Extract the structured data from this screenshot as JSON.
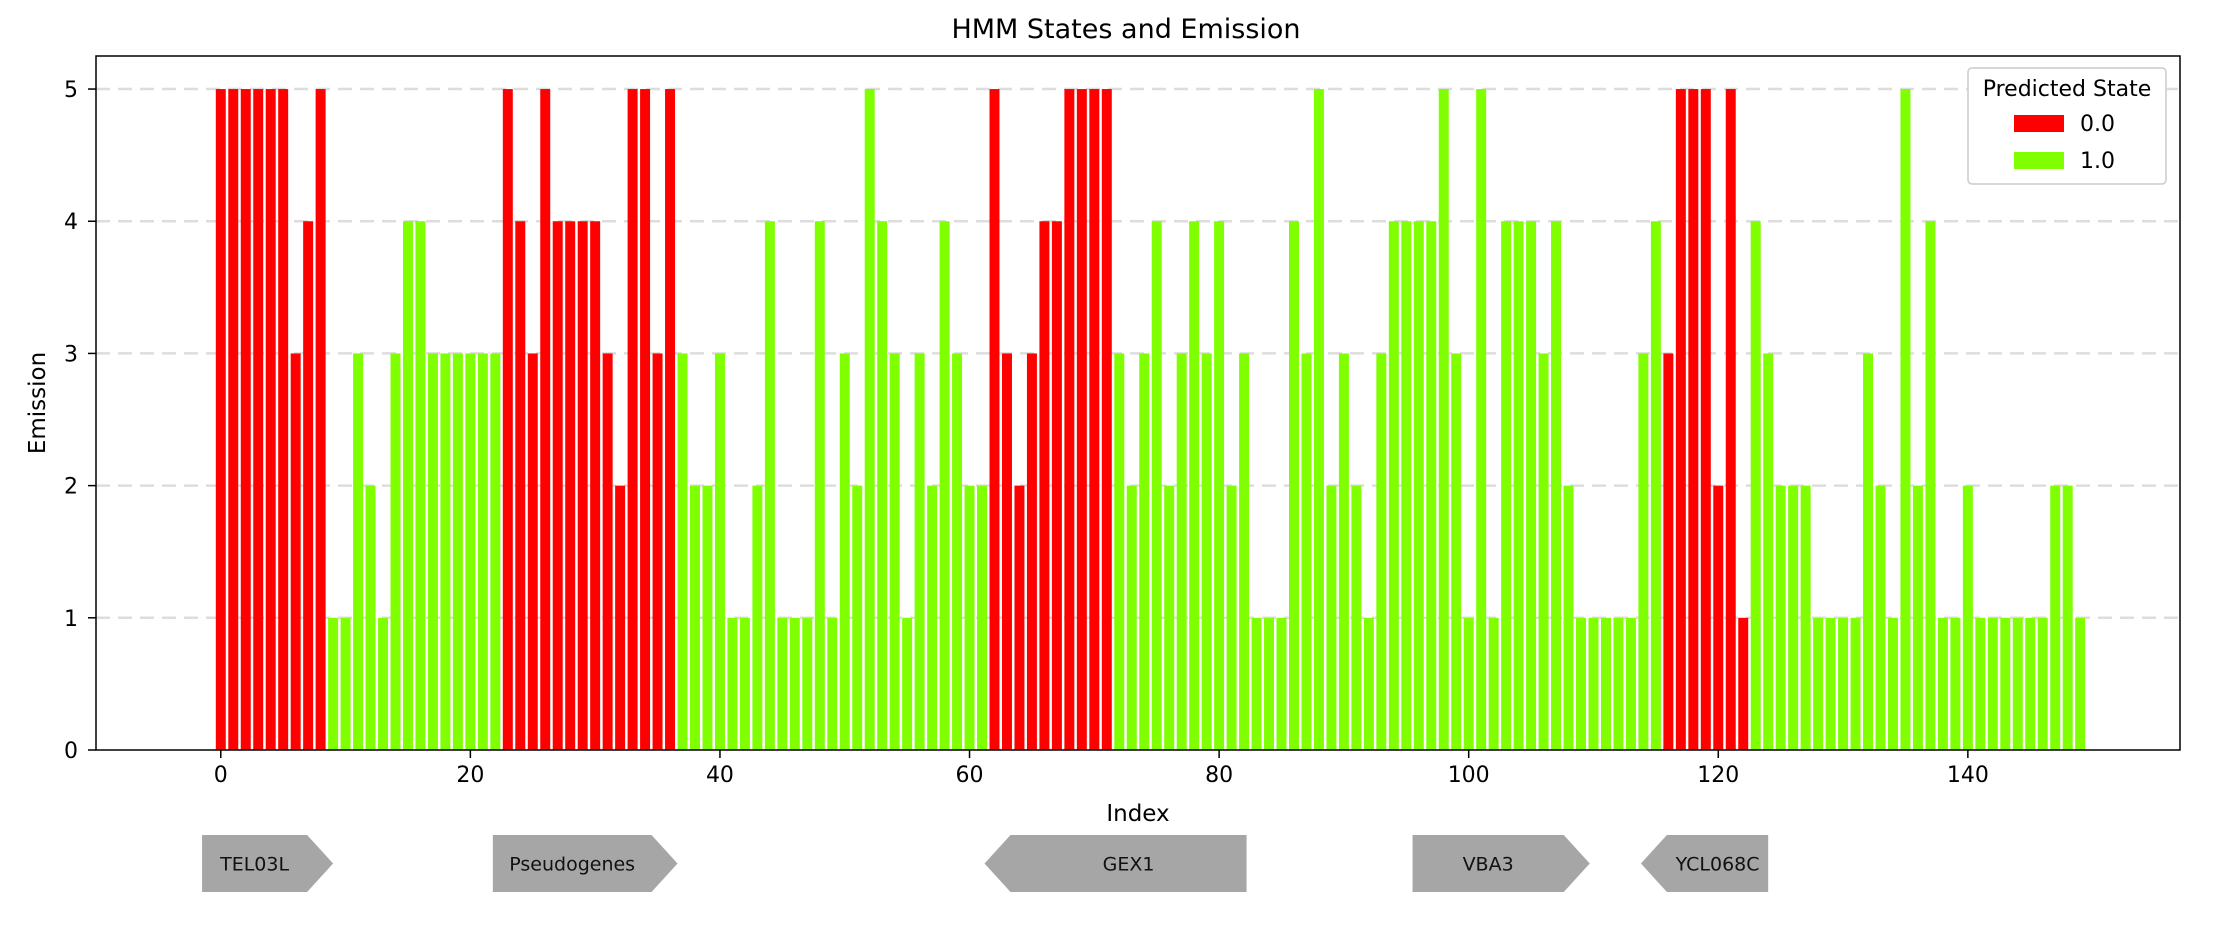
{
  "chart_data": {
    "type": "bar",
    "title": "HMM States and Emission",
    "xlabel": "Index",
    "ylabel": "Emission",
    "xlim": [
      -10,
      157
    ],
    "ylim": [
      0,
      5.25
    ],
    "xticks": [
      0,
      20,
      40,
      60,
      80,
      100,
      120,
      140
    ],
    "yticks": [
      0,
      1,
      2,
      3,
      4,
      5
    ],
    "grid": "y-dashed",
    "legend": {
      "title": "Predicted State",
      "placement": "top-right",
      "entries": [
        {
          "label": "0.0",
          "color": "#ff0000"
        },
        {
          "label": "1.0",
          "color": "#7fff00"
        }
      ]
    },
    "x": [
      0,
      1,
      2,
      3,
      4,
      5,
      6,
      7,
      8,
      9,
      10,
      11,
      12,
      13,
      14,
      15,
      16,
      17,
      18,
      19,
      20,
      21,
      22,
      23,
      24,
      25,
      26,
      27,
      28,
      29,
      30,
      31,
      32,
      33,
      34,
      35,
      36,
      37,
      38,
      39,
      40,
      41,
      42,
      43,
      44,
      45,
      46,
      47,
      48,
      49,
      50,
      51,
      52,
      53,
      54,
      55,
      56,
      57,
      58,
      59,
      60,
      61,
      62,
      63,
      64,
      65,
      66,
      67,
      68,
      69,
      70,
      71,
      72,
      73,
      74,
      75,
      76,
      77,
      78,
      79,
      80,
      81,
      82,
      83,
      84,
      85,
      86,
      87,
      88,
      89,
      90,
      91,
      92,
      93,
      94,
      95,
      96,
      97,
      98,
      99,
      100,
      101,
      102,
      103,
      104,
      105,
      106,
      107,
      108,
      109,
      110,
      111,
      112,
      113,
      114,
      115,
      116,
      117,
      118,
      119,
      120,
      121,
      122,
      123,
      124,
      125,
      126,
      127,
      128,
      129,
      130,
      131,
      132,
      133,
      134,
      135,
      136,
      137,
      138,
      139,
      140,
      141,
      142,
      143,
      144,
      145,
      146,
      147,
      148,
      149
    ],
    "values": [
      5,
      5,
      5,
      5,
      5,
      5,
      3,
      4,
      5,
      1,
      1,
      3,
      2,
      1,
      3,
      4,
      4,
      3,
      3,
      3,
      3,
      3,
      3,
      5,
      4,
      3,
      5,
      4,
      4,
      4,
      4,
      3,
      2,
      5,
      5,
      3,
      5,
      3,
      2,
      2,
      3,
      1,
      1,
      2,
      4,
      1,
      1,
      1,
      4,
      1,
      3,
      2,
      5,
      4,
      3,
      1,
      3,
      2,
      4,
      3,
      2,
      2,
      5,
      3,
      2,
      3,
      4,
      4,
      5,
      5,
      5,
      5,
      3,
      2,
      3,
      4,
      2,
      3,
      4,
      3,
      4,
      2,
      3,
      1,
      1,
      1,
      4,
      3,
      5,
      2,
      3,
      2,
      1,
      3,
      4,
      4,
      4,
      4,
      5,
      3,
      1,
      5,
      1,
      4,
      4,
      4,
      3,
      4,
      2,
      1,
      1,
      1,
      1,
      1,
      3,
      4,
      3,
      5,
      5,
      5,
      2,
      5,
      1,
      4,
      3,
      2,
      2,
      2,
      1,
      1,
      1,
      1,
      3,
      2,
      1,
      5,
      2,
      4,
      1,
      1,
      2,
      1,
      1,
      1,
      1,
      1,
      1,
      2,
      2,
      1
    ],
    "states": [
      0,
      0,
      0,
      0,
      0,
      0,
      0,
      0,
      0,
      1,
      1,
      1,
      1,
      1,
      1,
      1,
      1,
      1,
      1,
      1,
      1,
      1,
      1,
      0,
      0,
      0,
      0,
      0,
      0,
      0,
      0,
      0,
      0,
      0,
      0,
      0,
      0,
      1,
      1,
      1,
      1,
      1,
      1,
      1,
      1,
      1,
      1,
      1,
      1,
      1,
      1,
      1,
      1,
      1,
      1,
      1,
      1,
      1,
      1,
      1,
      1,
      1,
      0,
      0,
      0,
      0,
      0,
      0,
      0,
      0,
      0,
      0,
      1,
      1,
      1,
      1,
      1,
      1,
      1,
      1,
      1,
      1,
      1,
      1,
      1,
      1,
      1,
      1,
      1,
      1,
      1,
      1,
      1,
      1,
      1,
      1,
      1,
      1,
      1,
      1,
      1,
      1,
      1,
      1,
      1,
      1,
      1,
      1,
      1,
      1,
      1,
      1,
      1,
      1,
      1,
      1,
      0,
      0,
      0,
      0,
      0,
      0,
      0,
      1,
      1,
      1,
      1,
      1,
      1,
      1,
      1,
      1,
      1,
      1,
      1,
      1,
      1,
      1,
      1,
      1,
      1,
      1,
      1,
      1,
      1,
      1,
      1,
      1,
      1,
      1
    ],
    "annotations": [
      {
        "label": "TEL03L",
        "start": -1.5,
        "end": 9.0,
        "direction": "right"
      },
      {
        "label": "Pseudogenes",
        "start": 21.8,
        "end": 36.6,
        "direction": "right"
      },
      {
        "label": "GEX1",
        "start": 61.2,
        "end": 82.2,
        "direction": "left"
      },
      {
        "label": "VBA3",
        "start": 95.5,
        "end": 109.7,
        "direction": "right"
      },
      {
        "label": "YCL068C",
        "start": 113.8,
        "end": 124.0,
        "direction": "left"
      }
    ]
  },
  "colors": {
    "state0": "#ff0000",
    "state1": "#7fff00",
    "gene_arrow": "#a6a6a6",
    "grid": "#dddddd"
  }
}
